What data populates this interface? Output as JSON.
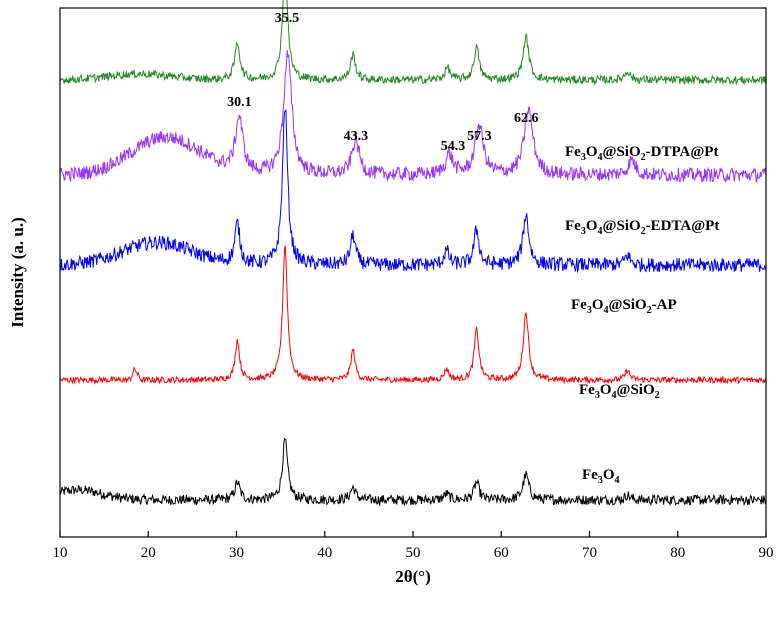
{
  "chart_data": {
    "type": "line",
    "title": "",
    "xlabel": "2θ(°)",
    "ylabel": "Intensity (a. u.)",
    "xlim": [
      10,
      90
    ],
    "xticks": [
      10,
      20,
      30,
      40,
      50,
      60,
      70,
      80,
      90
    ],
    "y_ticks_shown": false,
    "grid": false,
    "legend": "inline labels to the right of each trace",
    "peak_labels": [
      "30.1",
      "35.5",
      "43.3",
      "54.3",
      "57.3",
      "62.6"
    ],
    "peak_positions": [
      30.1,
      35.5,
      43.3,
      54.3,
      57.3,
      62.6
    ],
    "series": [
      {
        "name": "Fe3O4",
        "label_main": "Fe",
        "sub1": "3",
        "mid1": "O",
        "sub2": "4",
        "label_rest": "",
        "color": "#000000",
        "baseline": 0.0,
        "noise": 0.01,
        "broad_hump": {
          "center": 12,
          "width": 4,
          "height": 0.02
        },
        "peaks": [
          {
            "x": 30.1,
            "h": 0.035,
            "w": 0.35
          },
          {
            "x": 35.5,
            "h": 0.12,
            "w": 0.35
          },
          {
            "x": 43.2,
            "h": 0.025,
            "w": 0.35
          },
          {
            "x": 53.8,
            "h": 0.012,
            "w": 0.35
          },
          {
            "x": 57.2,
            "h": 0.035,
            "w": 0.35
          },
          {
            "x": 62.8,
            "h": 0.05,
            "w": 0.4
          },
          {
            "x": 74.3,
            "h": 0.01,
            "w": 0.35
          }
        ]
      },
      {
        "name": "Fe3O4@SiO2",
        "label_main": "Fe",
        "sub1": "3",
        "mid1": "O",
        "sub2": "4",
        "label_rest": "@SiO",
        "label_sub_end": "2",
        "label_tail": "",
        "color": "#ff0000",
        "baseline": 0.24,
        "noise": 0.006,
        "broad_hump": {
          "center": 18.5,
          "width": 0.4,
          "height": 0.02
        },
        "peaks": [
          {
            "x": 30.1,
            "h": 0.08,
            "w": 0.3
          },
          {
            "x": 35.5,
            "h": 0.27,
            "w": 0.32
          },
          {
            "x": 43.2,
            "h": 0.06,
            "w": 0.3
          },
          {
            "x": 53.8,
            "h": 0.022,
            "w": 0.3
          },
          {
            "x": 57.2,
            "h": 0.1,
            "w": 0.32
          },
          {
            "x": 62.8,
            "h": 0.135,
            "w": 0.35
          },
          {
            "x": 74.3,
            "h": 0.02,
            "w": 0.3
          }
        ]
      },
      {
        "name": "Fe3O4@SiO2-AP",
        "label_main": "Fe",
        "sub1": "3",
        "mid1": "O",
        "sub2": "4",
        "label_rest": "@SiO",
        "label_sub_end": "2",
        "label_tail": "-AP",
        "color": "#0000ff",
        "baseline": 0.47,
        "noise": 0.014,
        "broad_hump": {
          "center": 21,
          "width": 5.5,
          "height": 0.045
        },
        "peaks": [
          {
            "x": 30.1,
            "h": 0.08,
            "w": 0.35
          },
          {
            "x": 35.5,
            "h": 0.32,
            "w": 0.35
          },
          {
            "x": 43.2,
            "h": 0.06,
            "w": 0.35
          },
          {
            "x": 53.8,
            "h": 0.028,
            "w": 0.35
          },
          {
            "x": 57.2,
            "h": 0.07,
            "w": 0.35
          },
          {
            "x": 62.8,
            "h": 0.1,
            "w": 0.4
          },
          {
            "x": 74.3,
            "h": 0.02,
            "w": 0.35
          }
        ]
      },
      {
        "name": "Fe3O4@SiO2-EDTA@Pt",
        "label_main": "Fe",
        "sub1": "3",
        "mid1": "O",
        "sub2": "4",
        "label_rest": "@SiO",
        "label_sub_end": "2",
        "label_tail": "-EDTA@Pt",
        "color": "#9933ff",
        "baseline": 0.65,
        "noise": 0.014,
        "broad_hump": {
          "center": 22,
          "width": 5.5,
          "height": 0.075
        },
        "peaks": [
          {
            "x": 30.3,
            "h": 0.11,
            "w": 0.5
          },
          {
            "x": 35.8,
            "h": 0.24,
            "w": 0.55
          },
          {
            "x": 43.5,
            "h": 0.07,
            "w": 0.5
          },
          {
            "x": 54.1,
            "h": 0.04,
            "w": 0.5
          },
          {
            "x": 57.5,
            "h": 0.1,
            "w": 0.55
          },
          {
            "x": 63.1,
            "h": 0.13,
            "w": 0.6
          },
          {
            "x": 74.8,
            "h": 0.03,
            "w": 0.5
          }
        ]
      },
      {
        "name": "Fe3O4@SiO2-DTPA@Pt",
        "label_main": "Fe",
        "sub1": "3",
        "mid1": "O",
        "sub2": "4",
        "label_rest": "@SiO",
        "label_sub_end": "2",
        "label_tail": "-DTPA@Pt",
        "color": "#228b22",
        "baseline": 0.84,
        "noise": 0.008,
        "broad_hump": {
          "center": 19,
          "width": 5,
          "height": 0.012
        },
        "peaks": [
          {
            "x": 30.1,
            "h": 0.075,
            "w": 0.35
          },
          {
            "x": 35.5,
            "h": 0.225,
            "w": 0.35
          },
          {
            "x": 43.2,
            "h": 0.05,
            "w": 0.35
          },
          {
            "x": 53.9,
            "h": 0.025,
            "w": 0.35
          },
          {
            "x": 57.2,
            "h": 0.065,
            "w": 0.35
          },
          {
            "x": 62.8,
            "h": 0.085,
            "w": 0.4
          },
          {
            "x": 74.3,
            "h": 0.018,
            "w": 0.35
          }
        ]
      }
    ]
  }
}
